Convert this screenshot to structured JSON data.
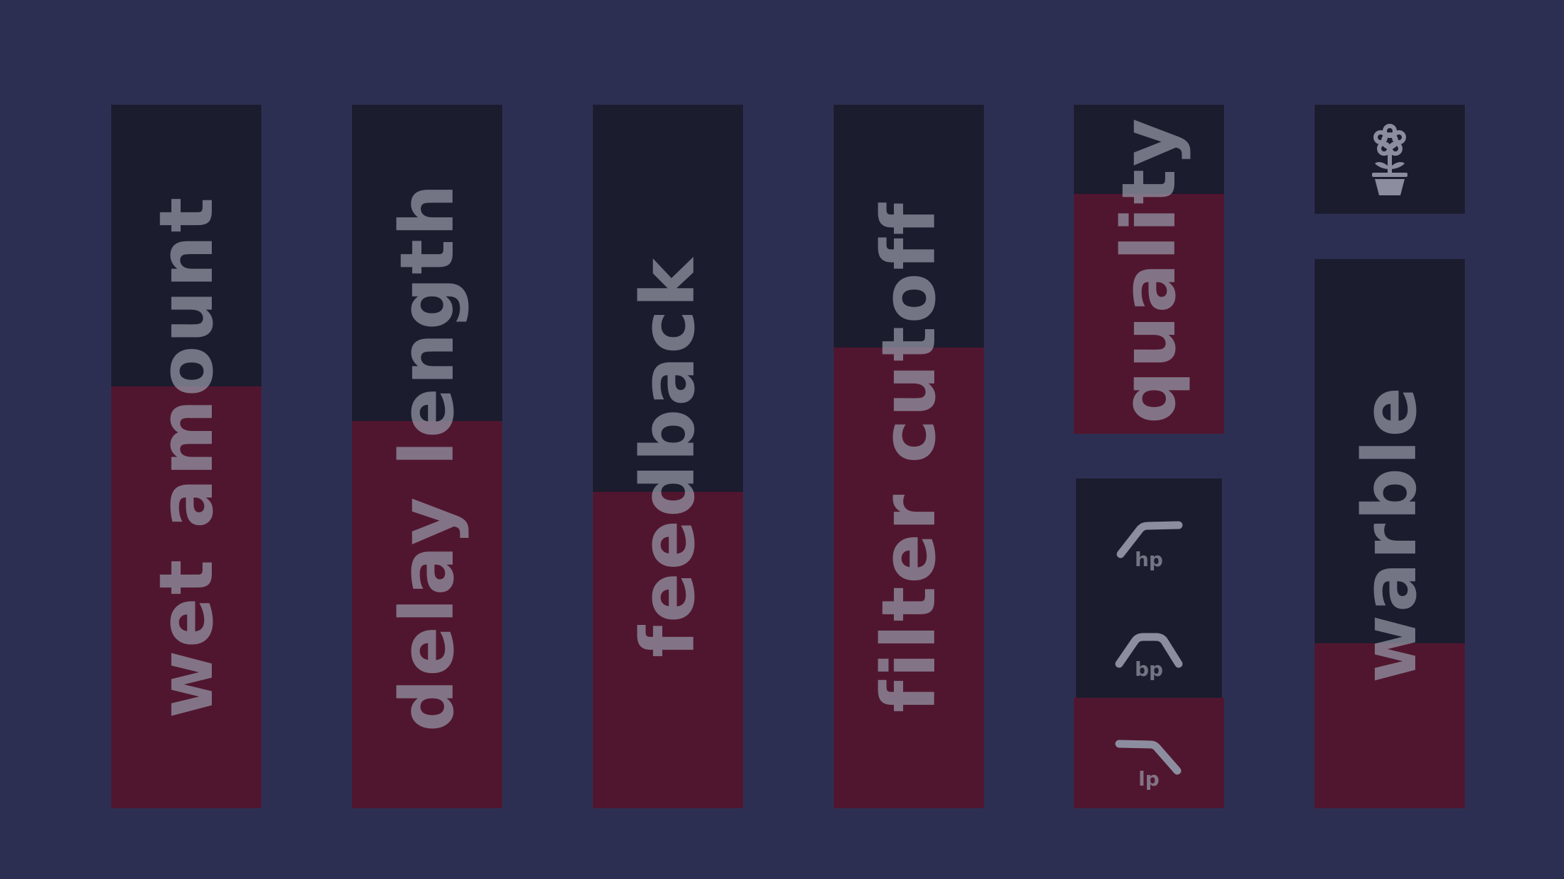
{
  "controls": {
    "wet": {
      "label": "wet amount",
      "level": 0.6
    },
    "delay": {
      "label": "delay length",
      "level": 0.55
    },
    "feedback": {
      "label": "feedback",
      "level": 0.45
    },
    "cutoff": {
      "label": "filter cutoff",
      "level": 0.655
    },
    "quality": {
      "label": "quality",
      "level": 0.73
    },
    "warble": {
      "label": "warble",
      "level": 0.3
    }
  },
  "filter_type": {
    "options": [
      {
        "id": "hp",
        "label": "hp",
        "icon": "highpass-curve-icon"
      },
      {
        "id": "bp",
        "label": "bp",
        "icon": "bandpass-curve-icon"
      },
      {
        "id": "lp",
        "label": "lp",
        "icon": "lowpass-curve-icon"
      }
    ],
    "selected": "lp"
  },
  "preset_button": {
    "icon": "flower-pot-icon"
  },
  "colors": {
    "background": "#2d2f52",
    "track": "#1b1c2e",
    "fill": "#51162f",
    "label": "#9698a8"
  }
}
